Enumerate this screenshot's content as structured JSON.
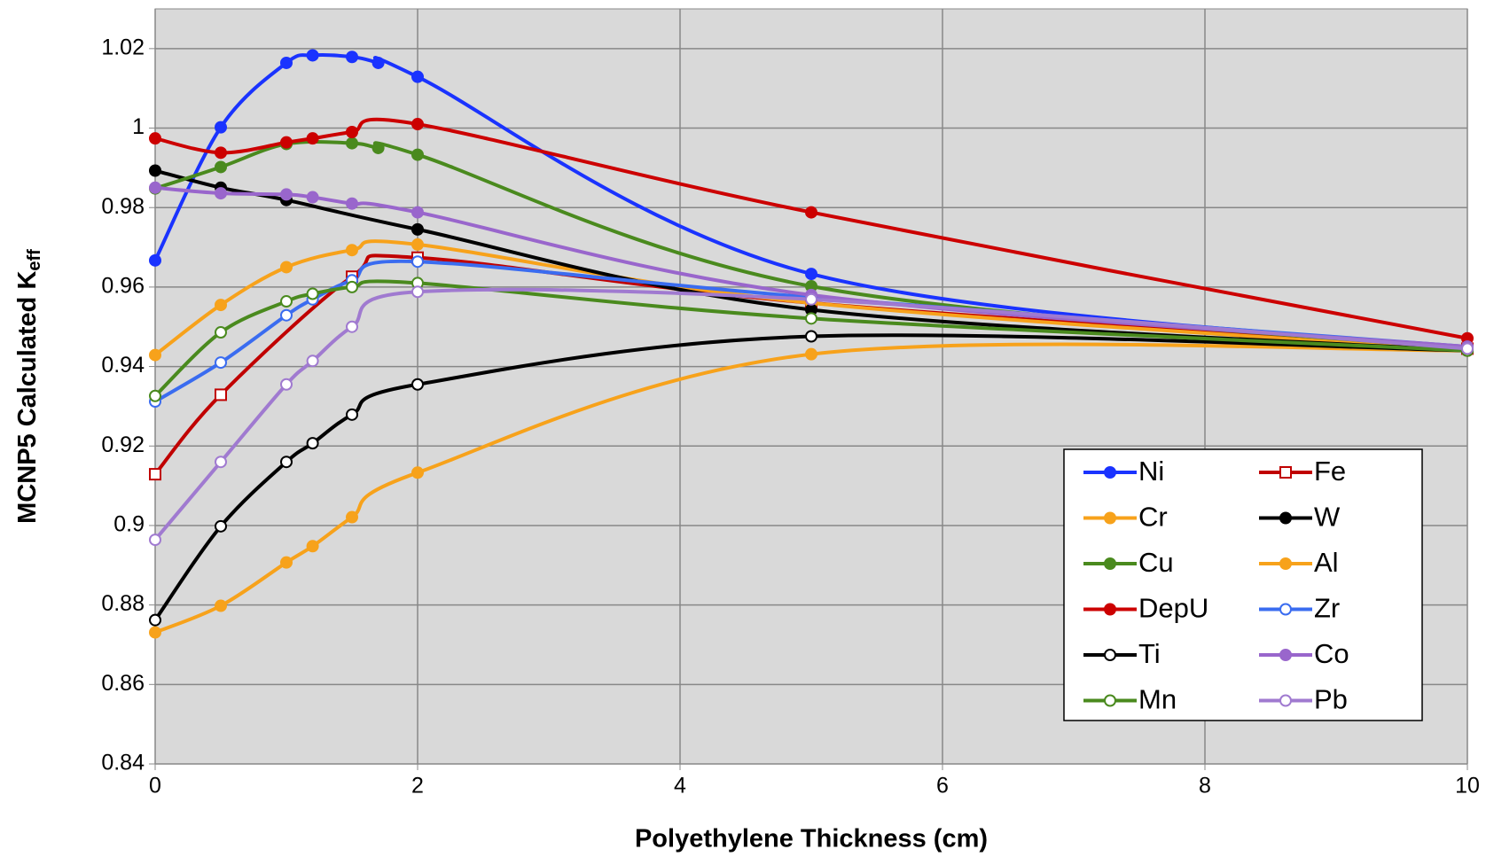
{
  "chart_data": {
    "type": "line",
    "x_label": "Polyethylene Thickness (cm)",
    "y_label": "MCNP5 Calculated K",
    "y_label_sub": "eff",
    "xlim": [
      0,
      10
    ],
    "xticks": [
      0,
      2,
      4,
      6,
      8,
      10
    ],
    "ylim": [
      0.84,
      1.03
    ],
    "yticks": [
      0.84,
      0.86,
      0.88,
      0.9,
      0.92,
      0.94,
      0.96,
      0.98,
      1,
      1.02
    ],
    "grid": true,
    "legend": "lower right",
    "series": [
      {
        "name": "Ni",
        "color": "#1a33ff",
        "marker": "circle",
        "open": false,
        "x": [
          0,
          0.5,
          1,
          1.2,
          1.5,
          1.7,
          2,
          5,
          10
        ],
        "values": [
          0.9667,
          1.0002,
          1.0164,
          1.0183,
          1.0179,
          1.0164,
          1.0129,
          0.9633,
          0.9445
        ]
      },
      {
        "name": "Fe",
        "color": "#c00000",
        "marker": "square",
        "open": true,
        "x": [
          0,
          0.5,
          1.5,
          2,
          5,
          10
        ],
        "values": [
          0.9129,
          0.9329,
          0.9626,
          0.9674,
          0.956,
          0.9445
        ]
      },
      {
        "name": "Cr",
        "color": "#f7a21b",
        "marker": "circle",
        "open": false,
        "x": [
          0,
          0.5,
          1,
          1.5,
          2,
          5,
          10
        ],
        "values": [
          0.9429,
          0.9555,
          0.965,
          0.9693,
          0.9707,
          0.956,
          0.944
        ]
      },
      {
        "name": "W",
        "color": "#000000",
        "marker": "circle",
        "open": false,
        "x": [
          0,
          0.5,
          1,
          2,
          5,
          10
        ],
        "values": [
          0.9893,
          0.985,
          0.9819,
          0.9745,
          0.9543,
          0.944
        ]
      },
      {
        "name": "Cu",
        "color": "#4a8a1e",
        "marker": "circle",
        "open": false,
        "x": [
          0,
          0.5,
          1,
          1.5,
          1.7,
          2,
          5,
          10
        ],
        "values": [
          0.9848,
          0.9902,
          0.996,
          0.9962,
          0.995,
          0.9933,
          0.9602,
          0.9445
        ]
      },
      {
        "name": "Al",
        "color": "#f7a21b",
        "marker": "circle",
        "open": false,
        "x": [
          0,
          0.5,
          1,
          1.2,
          1.5,
          2,
          5,
          10
        ],
        "values": [
          0.8731,
          0.8798,
          0.8907,
          0.8948,
          0.9021,
          0.9133,
          0.9431,
          0.944
        ]
      },
      {
        "name": "DepU",
        "color": "#cc0000",
        "marker": "circle",
        "open": false,
        "x": [
          0,
          0.5,
          1,
          1.2,
          1.5,
          2,
          5,
          10
        ],
        "values": [
          0.9974,
          0.9938,
          0.9964,
          0.9974,
          0.999,
          1.001,
          0.9788,
          0.9471
        ]
      },
      {
        "name": "Zr",
        "color": "#3a6cf0",
        "marker": "circle",
        "open": true,
        "x": [
          0,
          0.5,
          1,
          1.2,
          1.5,
          2,
          5,
          10
        ],
        "values": [
          0.9312,
          0.941,
          0.9529,
          0.9569,
          0.9617,
          0.9664,
          0.9574,
          0.945
        ]
      },
      {
        "name": "Ti",
        "color": "#000000",
        "marker": "circle",
        "open": true,
        "x": [
          0,
          0.5,
          1,
          1.2,
          1.5,
          2,
          5,
          10
        ],
        "values": [
          0.8762,
          0.8998,
          0.916,
          0.9207,
          0.9279,
          0.9355,
          0.9476,
          0.944
        ]
      },
      {
        "name": "Co",
        "color": "#9966cc",
        "marker": "circle",
        "open": false,
        "x": [
          0,
          0.5,
          1,
          1.2,
          1.5,
          2,
          5,
          10
        ],
        "values": [
          0.985,
          0.9836,
          0.9833,
          0.9826,
          0.981,
          0.9788,
          0.958,
          0.945
        ]
      },
      {
        "name": "Mn",
        "color": "#4a8a1e",
        "marker": "circle",
        "open": true,
        "x": [
          0,
          0.5,
          1,
          1.2,
          1.5,
          2,
          5,
          10
        ],
        "values": [
          0.9326,
          0.9486,
          0.9564,
          0.9583,
          0.96,
          0.961,
          0.9521,
          0.944
        ]
      },
      {
        "name": "Pb",
        "color": "#a07ad0",
        "marker": "circle",
        "open": true,
        "x": [
          0,
          0.5,
          1,
          1.2,
          1.5,
          2,
          5,
          10
        ],
        "values": [
          0.8964,
          0.916,
          0.9355,
          0.9414,
          0.95,
          0.9588,
          0.9569,
          0.9445
        ]
      }
    ]
  }
}
